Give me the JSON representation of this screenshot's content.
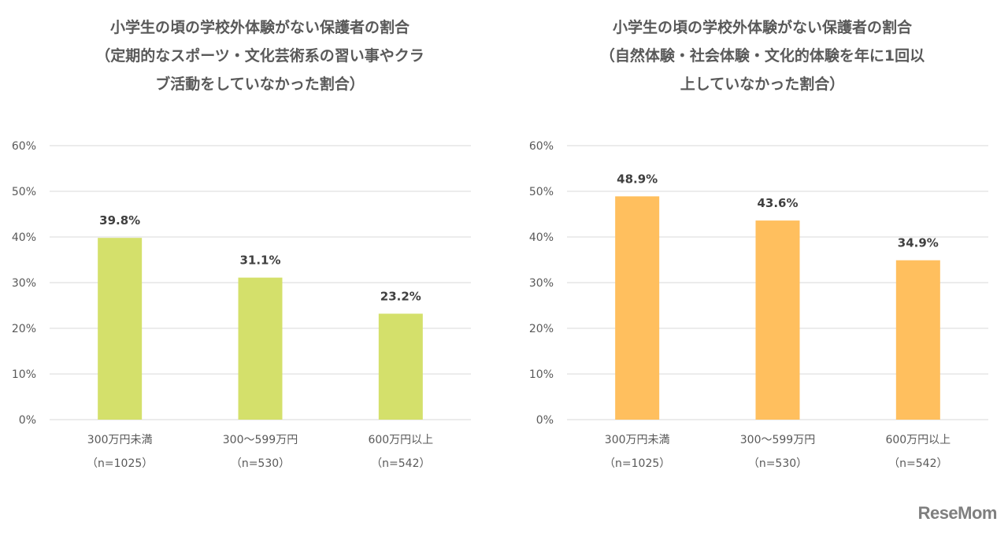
{
  "chart_data": [
    {
      "type": "bar",
      "title": [
        "小学生の頃の学校外体験がない保護者の割合",
        "（定期的なスポーツ・文化芸術系の習い事やクラ",
        "ブ活動をしていなかった割合）"
      ],
      "categories": [
        [
          "300万円未満",
          "（n=1025）"
        ],
        [
          "300～599万円",
          "（n=530）"
        ],
        [
          "600万円以上",
          "（n=542）"
        ]
      ],
      "values": [
        39.8,
        31.1,
        23.2
      ],
      "data_labels": [
        "39.8%",
        "31.1%",
        "23.2%"
      ],
      "yticks": [
        "0%",
        "10%",
        "20%",
        "30%",
        "40%",
        "50%",
        "60%"
      ],
      "ylim": [
        0,
        60
      ],
      "grid": true,
      "color": "#d4e06b"
    },
    {
      "type": "bar",
      "title": [
        "小学生の頃の学校外体験がない保護者の割合",
        "（自然体験・社会体験・文化的体験を年に1回以",
        "上していなかった割合）"
      ],
      "categories": [
        [
          "300万円未満",
          "（n=1025）"
        ],
        [
          "300～599万円",
          "（n=530）"
        ],
        [
          "600万円以上",
          "（n=542）"
        ]
      ],
      "values": [
        48.9,
        43.6,
        34.9
      ],
      "data_labels": [
        "48.9%",
        "43.6%",
        "34.9%"
      ],
      "yticks": [
        "0%",
        "10%",
        "20%",
        "30%",
        "40%",
        "50%",
        "60%"
      ],
      "ylim": [
        0,
        60
      ],
      "grid": true,
      "color": "#ffbf5e"
    }
  ],
  "logo": "ReseMom"
}
